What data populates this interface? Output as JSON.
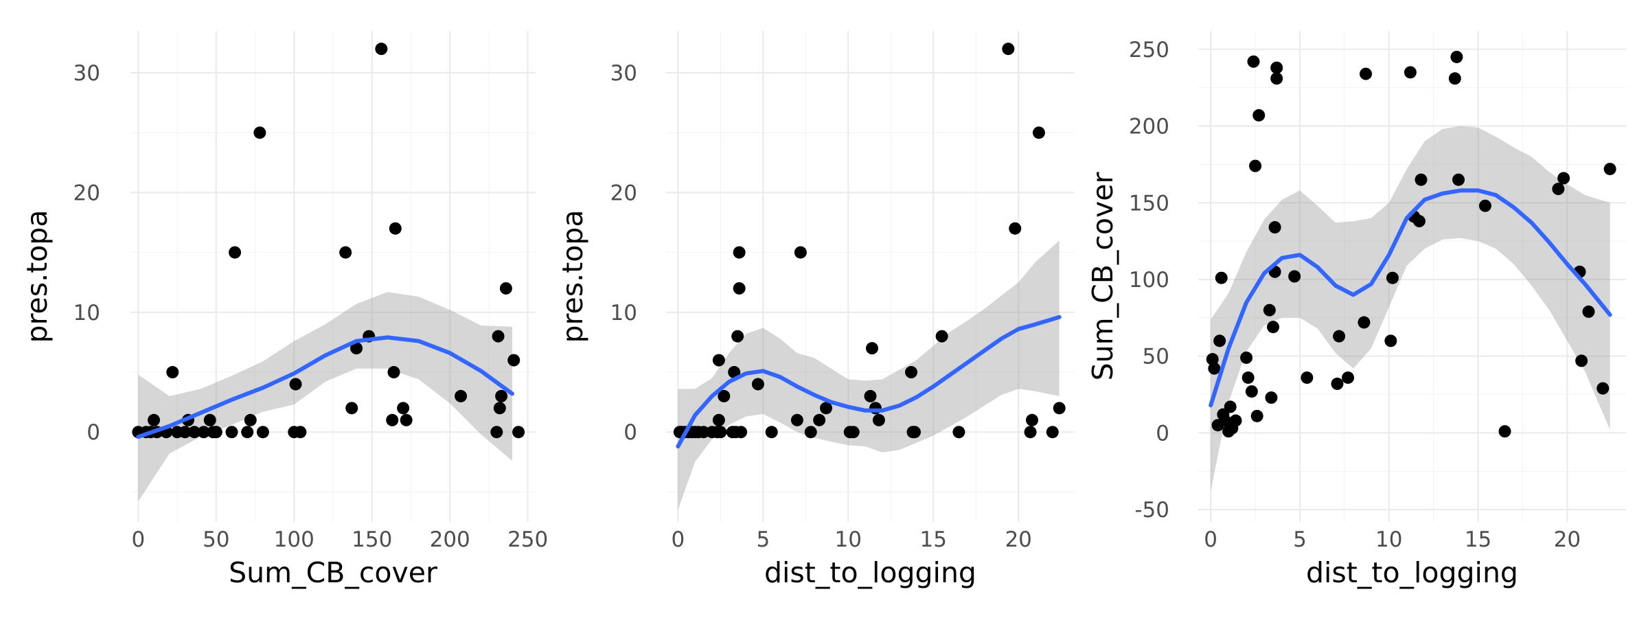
{
  "colors": {
    "points": "#000000",
    "smooth_line": "#3366FF",
    "ribbon": "#999999",
    "grid": "#ebebeb",
    "background": "#ffffff"
  },
  "chart_data": [
    {
      "type": "scatter",
      "xlabel": "Sum_CB_cover",
      "ylabel": "pres.topa",
      "xlim": [
        -5,
        255
      ],
      "ylim": [
        -7.5,
        33.5
      ],
      "x_ticks": [
        0,
        50,
        100,
        150,
        200,
        250
      ],
      "y_ticks": [
        0,
        10,
        20,
        30
      ],
      "grid": true,
      "points": [
        [
          0,
          0
        ],
        [
          5,
          0
        ],
        [
          8,
          0
        ],
        [
          10,
          1
        ],
        [
          12,
          0
        ],
        [
          18,
          0
        ],
        [
          22,
          5
        ],
        [
          25,
          0
        ],
        [
          30,
          0
        ],
        [
          32,
          1
        ],
        [
          36,
          0
        ],
        [
          42,
          0
        ],
        [
          46,
          1
        ],
        [
          48,
          0
        ],
        [
          50,
          0
        ],
        [
          60,
          0
        ],
        [
          62,
          15
        ],
        [
          70,
          0
        ],
        [
          72,
          1
        ],
        [
          78,
          25
        ],
        [
          80,
          0
        ],
        [
          100,
          0
        ],
        [
          101,
          4
        ],
        [
          104,
          0
        ],
        [
          133,
          15
        ],
        [
          137,
          2
        ],
        [
          140,
          7
        ],
        [
          148,
          8
        ],
        [
          156,
          32
        ],
        [
          163,
          1
        ],
        [
          164,
          5
        ],
        [
          165,
          17
        ],
        [
          170,
          2
        ],
        [
          172,
          1
        ],
        [
          207,
          3
        ],
        [
          230,
          0
        ],
        [
          231,
          8
        ],
        [
          232,
          2
        ],
        [
          233,
          3
        ],
        [
          236,
          12
        ],
        [
          241,
          6
        ],
        [
          244,
          0
        ]
      ],
      "smooth": {
        "x": [
          0,
          20,
          40,
          60,
          80,
          100,
          120,
          140,
          160,
          180,
          200,
          220,
          240
        ],
        "y": [
          -0.4,
          0.5,
          1.6,
          2.7,
          3.7,
          4.9,
          6.4,
          7.6,
          7.9,
          7.6,
          6.6,
          5.1,
          3.2
        ],
        "lower": [
          -5.8,
          -1.8,
          -0.4,
          0.6,
          1.7,
          2.3,
          4.2,
          5.3,
          5.3,
          4.4,
          2.4,
          -0.2,
          -2.4
        ],
        "upper": [
          4.8,
          3.0,
          3.6,
          4.7,
          5.9,
          7.6,
          9.0,
          10.7,
          11.7,
          11.3,
          10.2,
          8.9,
          8.8
        ]
      }
    },
    {
      "type": "scatter",
      "xlabel": "dist_to_logging",
      "ylabel": "pres.topa",
      "xlim": [
        -0.7,
        23.3
      ],
      "ylim": [
        -7.5,
        33.5
      ],
      "x_ticks": [
        0,
        5,
        10,
        15,
        20
      ],
      "y_ticks": [
        0,
        10,
        20,
        30
      ],
      "grid": true,
      "points": [
        [
          0.1,
          0
        ],
        [
          0.2,
          0
        ],
        [
          0.4,
          0
        ],
        [
          0.6,
          0
        ],
        [
          0.8,
          0
        ],
        [
          1.0,
          0
        ],
        [
          1.2,
          0
        ],
        [
          1.5,
          0
        ],
        [
          2.0,
          0
        ],
        [
          2.3,
          0
        ],
        [
          2.4,
          1
        ],
        [
          2.4,
          6
        ],
        [
          2.5,
          0
        ],
        [
          2.7,
          3
        ],
        [
          3.2,
          0
        ],
        [
          3.3,
          5
        ],
        [
          3.4,
          0
        ],
        [
          3.5,
          8
        ],
        [
          3.6,
          15
        ],
        [
          3.6,
          12
        ],
        [
          3.7,
          0
        ],
        [
          4.7,
          4
        ],
        [
          5.5,
          0
        ],
        [
          7.0,
          1
        ],
        [
          7.2,
          15
        ],
        [
          7.8,
          0
        ],
        [
          8.3,
          1
        ],
        [
          8.7,
          2
        ],
        [
          10.1,
          0
        ],
        [
          10.3,
          0
        ],
        [
          11.3,
          3
        ],
        [
          11.4,
          7
        ],
        [
          11.6,
          2
        ],
        [
          11.8,
          1
        ],
        [
          13.7,
          5
        ],
        [
          13.8,
          0
        ],
        [
          13.9,
          0
        ],
        [
          15.5,
          8
        ],
        [
          16.5,
          0
        ],
        [
          19.4,
          32
        ],
        [
          19.8,
          17
        ],
        [
          20.7,
          0
        ],
        [
          20.8,
          1
        ],
        [
          21.2,
          25
        ],
        [
          22.0,
          0
        ],
        [
          22.4,
          2
        ]
      ],
      "smooth": {
        "x": [
          0,
          1,
          2,
          3,
          4,
          5,
          6,
          7,
          8,
          9,
          10,
          11,
          12,
          13,
          14,
          15,
          16,
          17,
          18,
          19,
          20,
          21,
          22.4
        ],
        "y": [
          -1.2,
          1.4,
          3.0,
          4.2,
          4.9,
          5.1,
          4.6,
          3.8,
          3.1,
          2.5,
          2.1,
          1.8,
          1.8,
          2.2,
          2.9,
          3.8,
          4.8,
          5.8,
          6.8,
          7.8,
          8.6,
          9.0,
          9.6
        ],
        "lower": [
          -6.5,
          -2.5,
          -0.6,
          0.6,
          1.3,
          1.5,
          0.8,
          0.0,
          -0.5,
          -0.8,
          -1.1,
          -1.2,
          -1.7,
          -1.5,
          -0.9,
          -0.3,
          0.5,
          1.3,
          2.2,
          3.1,
          3.6,
          3.4,
          3.0
        ],
        "upper": [
          3.6,
          3.6,
          4.5,
          6.6,
          8.2,
          8.7,
          7.8,
          6.6,
          6.2,
          5.3,
          4.4,
          4.3,
          4.4,
          5.2,
          6.0,
          7.2,
          8.4,
          9.3,
          10.3,
          11.4,
          12.5,
          14.2,
          16.0
        ]
      }
    },
    {
      "type": "scatter",
      "xlabel": "dist_to_logging",
      "ylabel": "Sum_CB_cover",
      "xlim": [
        -0.7,
        23.3
      ],
      "ylim": [
        -58,
        262
      ],
      "x_ticks": [
        0,
        5,
        10,
        15,
        20
      ],
      "y_ticks": [
        -50,
        0,
        50,
        100,
        150,
        200,
        250
      ],
      "grid": true,
      "points": [
        [
          0.1,
          48
        ],
        [
          0.2,
          42
        ],
        [
          0.4,
          5
        ],
        [
          0.5,
          60
        ],
        [
          0.6,
          101
        ],
        [
          0.7,
          12
        ],
        [
          0.8,
          8
        ],
        [
          1.0,
          1
        ],
        [
          1.1,
          17
        ],
        [
          1.2,
          3
        ],
        [
          1.4,
          8
        ],
        [
          2.0,
          49
        ],
        [
          2.1,
          36
        ],
        [
          2.3,
          27
        ],
        [
          2.4,
          242
        ],
        [
          2.5,
          174
        ],
        [
          2.6,
          11
        ],
        [
          2.7,
          207
        ],
        [
          3.3,
          80
        ],
        [
          3.4,
          23
        ],
        [
          3.5,
          69
        ],
        [
          3.6,
          105
        ],
        [
          3.6,
          134
        ],
        [
          3.7,
          238
        ],
        [
          3.7,
          231
        ],
        [
          4.7,
          102
        ],
        [
          5.4,
          36
        ],
        [
          7.1,
          32
        ],
        [
          7.2,
          63
        ],
        [
          7.7,
          36
        ],
        [
          8.6,
          72
        ],
        [
          8.7,
          234
        ],
        [
          10.1,
          60
        ],
        [
          10.2,
          101
        ],
        [
          11.2,
          235
        ],
        [
          11.4,
          141
        ],
        [
          11.7,
          138
        ],
        [
          11.8,
          165
        ],
        [
          13.7,
          231
        ],
        [
          13.8,
          245
        ],
        [
          13.9,
          165
        ],
        [
          15.4,
          148
        ],
        [
          16.5,
          1
        ],
        [
          19.5,
          159
        ],
        [
          19.8,
          166
        ],
        [
          20.7,
          105
        ],
        [
          20.8,
          47
        ],
        [
          21.2,
          79
        ],
        [
          22.0,
          29
        ],
        [
          22.4,
          172
        ]
      ],
      "smooth": {
        "x": [
          0,
          1,
          2,
          3,
          4,
          5,
          6,
          7,
          8,
          9,
          10,
          11,
          12,
          13,
          14,
          15,
          16,
          17,
          18,
          19,
          20,
          21,
          22.4
        ],
        "y": [
          18,
          55,
          85,
          104,
          114,
          116,
          108,
          96,
          90,
          97,
          116,
          140,
          152,
          156,
          158,
          158,
          155,
          147,
          137,
          124,
          110,
          97,
          77
        ],
        "lower": [
          -38,
          20,
          53,
          70,
          75,
          75,
          68,
          52,
          42,
          55,
          82,
          109,
          120,
          126,
          127,
          125,
          120,
          110,
          96,
          80,
          60,
          40,
          2
        ],
        "upper": [
          74,
          91,
          118,
          139,
          152,
          158,
          148,
          137,
          138,
          140,
          150,
          172,
          190,
          198,
          200,
          199,
          193,
          186,
          180,
          170,
          162,
          155,
          150
        ]
      }
    }
  ]
}
